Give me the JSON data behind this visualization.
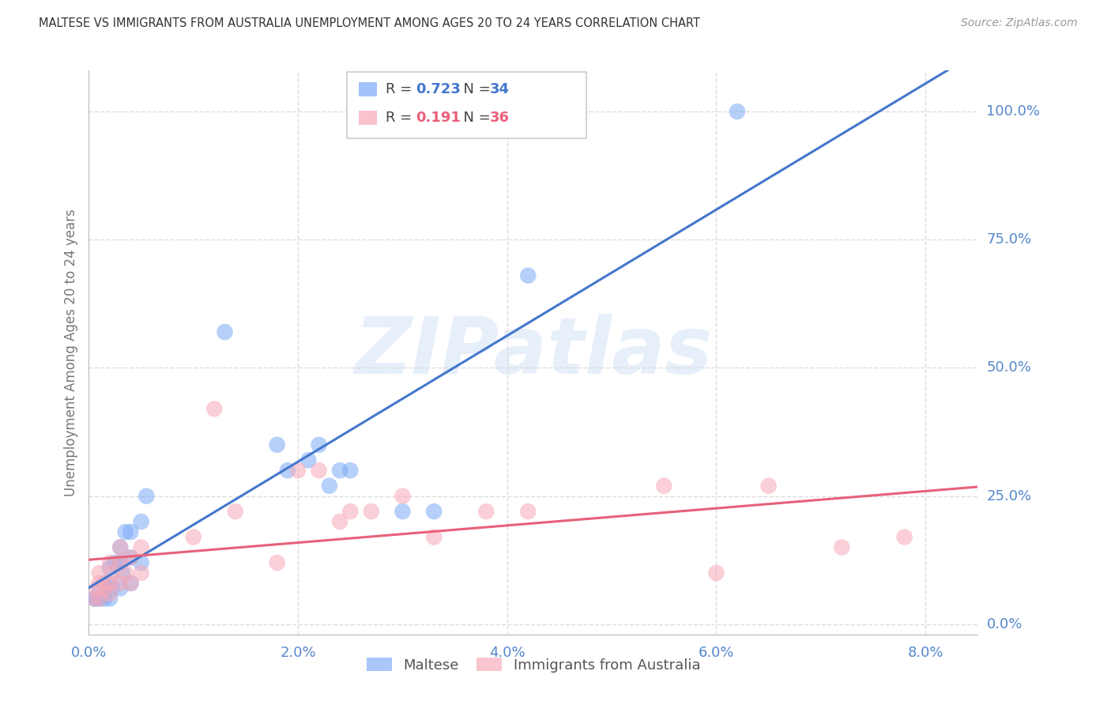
{
  "title": "MALTESE VS IMMIGRANTS FROM AUSTRALIA UNEMPLOYMENT AMONG AGES 20 TO 24 YEARS CORRELATION CHART",
  "source": "Source: ZipAtlas.com",
  "ylabel": "Unemployment Among Ages 20 to 24 years",
  "y_ticks": [
    0.0,
    0.25,
    0.5,
    0.75,
    1.0
  ],
  "y_tick_labels": [
    "0.0%",
    "25.0%",
    "50.0%",
    "75.0%",
    "100.0%"
  ],
  "x_tick_vals": [
    0.0,
    0.02,
    0.04,
    0.06,
    0.08
  ],
  "x_tick_labels": [
    "0.0%",
    "2.0%",
    "4.0%",
    "6.0%",
    "8.0%"
  ],
  "xlim": [
    0.0,
    0.085
  ],
  "ylim": [
    -0.02,
    1.08
  ],
  "maltese_R": 0.723,
  "maltese_N": 34,
  "australia_R": 0.191,
  "australia_N": 36,
  "maltese_color": "#7BAAF7",
  "australia_color": "#F7A8B8",
  "trend_maltese_color": "#4477CC",
  "trend_australia_color": "#E8607A",
  "legend_label_maltese": "Maltese",
  "legend_label_australia": "Immigrants from Australia",
  "watermark": "ZIPatlas",
  "maltese_x": [
    0.0005,
    0.0007,
    0.001,
    0.001,
    0.0015,
    0.0015,
    0.002,
    0.002,
    0.002,
    0.0022,
    0.0025,
    0.003,
    0.003,
    0.003,
    0.0032,
    0.0035,
    0.004,
    0.004,
    0.004,
    0.005,
    0.005,
    0.0055,
    0.013,
    0.018,
    0.019,
    0.021,
    0.022,
    0.023,
    0.024,
    0.025,
    0.03,
    0.033,
    0.042,
    0.062
  ],
  "maltese_y": [
    0.05,
    0.05,
    0.05,
    0.07,
    0.05,
    0.08,
    0.05,
    0.08,
    0.11,
    0.07,
    0.12,
    0.07,
    0.12,
    0.15,
    0.1,
    0.18,
    0.08,
    0.13,
    0.18,
    0.12,
    0.2,
    0.25,
    0.57,
    0.35,
    0.3,
    0.32,
    0.35,
    0.27,
    0.3,
    0.3,
    0.22,
    0.22,
    0.68,
    1.0
  ],
  "australia_x": [
    0.0005,
    0.0008,
    0.001,
    0.001,
    0.001,
    0.0015,
    0.002,
    0.002,
    0.002,
    0.0022,
    0.003,
    0.003,
    0.003,
    0.0035,
    0.004,
    0.004,
    0.005,
    0.005,
    0.01,
    0.012,
    0.014,
    0.018,
    0.02,
    0.022,
    0.024,
    0.025,
    0.027,
    0.03,
    0.033,
    0.038,
    0.042,
    0.055,
    0.06,
    0.065,
    0.072,
    0.078
  ],
  "australia_y": [
    0.05,
    0.07,
    0.05,
    0.08,
    0.1,
    0.07,
    0.06,
    0.08,
    0.12,
    0.1,
    0.08,
    0.12,
    0.15,
    0.1,
    0.08,
    0.13,
    0.1,
    0.15,
    0.17,
    0.42,
    0.22,
    0.12,
    0.3,
    0.3,
    0.2,
    0.22,
    0.22,
    0.25,
    0.17,
    0.22,
    0.22,
    0.27,
    0.1,
    0.27,
    0.15,
    0.17
  ],
  "background_color": "#FFFFFF",
  "grid_color": "#DDDDDD",
  "title_color": "#333333",
  "axis_label_color": "#777777",
  "tick_label_color": "#5588CC"
}
